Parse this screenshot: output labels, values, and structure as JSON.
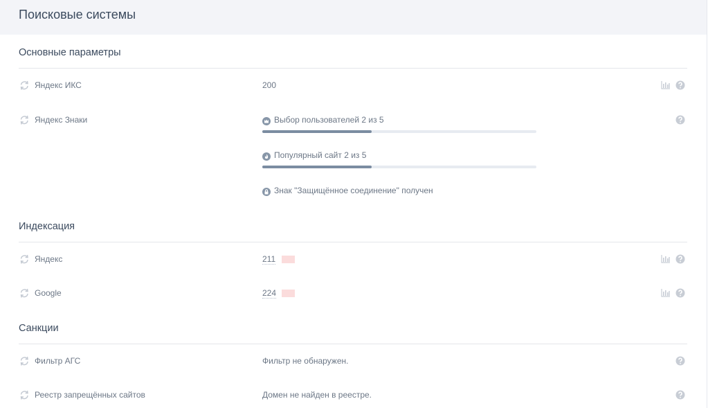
{
  "header": {
    "title": "Поисковые системы"
  },
  "sections": [
    {
      "title": "Основные параметры",
      "rows": [
        {
          "label": "Яндекс ИКС",
          "value": "200",
          "chart": true,
          "help": true
        },
        {
          "label": "Яндекс Знаки",
          "help": true,
          "badges": [
            {
              "text": "Выбор пользователей 2 из 5",
              "value": 2,
              "max": 5
            },
            {
              "text": "Популярный сайт 2 из 5",
              "value": 2,
              "max": 5
            },
            {
              "text": "Знак \"Защищённое соединение\" получен"
            }
          ]
        }
      ]
    },
    {
      "title": "Индексация",
      "rows": [
        {
          "label": "Яндекс",
          "value": "211",
          "redacted": true,
          "chart": true,
          "help": true
        },
        {
          "label": "Google",
          "value": "224",
          "redacted": true,
          "chart": true,
          "help": true
        }
      ]
    },
    {
      "title": "Санкции",
      "rows": [
        {
          "label": "Фильтр АГС",
          "value": "Фильтр не обнаружен.",
          "help": true
        },
        {
          "label": "Реестр запрещённых сайтов",
          "value": "Домен не найден в реестре.",
          "help": true
        }
      ]
    }
  ]
}
